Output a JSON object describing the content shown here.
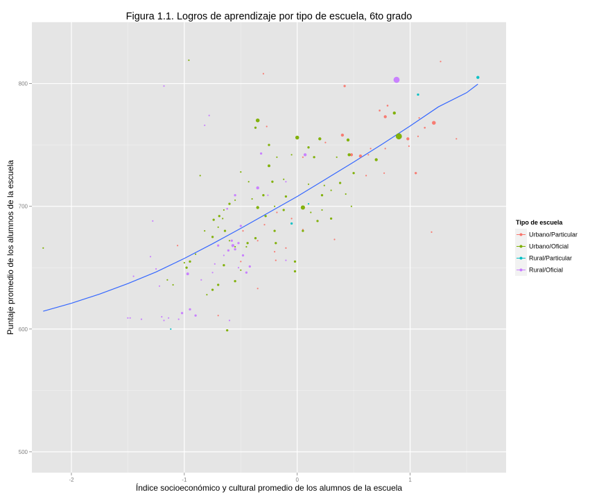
{
  "chart_data": {
    "type": "scatter",
    "title": "Figura 1.1. Logros de aprendizaje por tipo de escuela, 6to grado",
    "xlabel": "Índice socioeconómico y cultural promedio de los alumnos de la escuela",
    "ylabel": "Puntaje promedio de los alumnos de la escuela",
    "xlim": [
      -2.35,
      1.85
    ],
    "ylim": [
      483,
      850
    ],
    "x_ticks": [
      -2,
      -1,
      0,
      1
    ],
    "x_tick_labels": [
      "-2",
      "-1",
      "0",
      "1"
    ],
    "y_ticks": [
      500,
      600,
      700,
      800
    ],
    "y_tick_labels": [
      "500",
      "600",
      "700",
      "800"
    ],
    "grid": true,
    "legend": {
      "title": "Tipo de escuela",
      "position": "right"
    },
    "series": [
      {
        "name": "Urbano/Particular",
        "color": "#F8766D",
        "points": [
          [
            -0.3,
            808,
            1
          ],
          [
            0.42,
            798,
            1.5
          ],
          [
            1.27,
            818,
            1
          ],
          [
            0.8,
            782,
            1.2
          ],
          [
            0.73,
            778,
            1.2
          ],
          [
            0.78,
            773,
            2
          ],
          [
            1.08,
            772,
            1
          ],
          [
            1.13,
            764,
            1.2
          ],
          [
            1.21,
            768,
            2.5
          ],
          [
            1.07,
            757,
            1
          ],
          [
            0.98,
            755,
            2
          ],
          [
            1.41,
            755,
            1
          ],
          [
            0.4,
            758,
            2
          ],
          [
            0.25,
            752,
            1
          ],
          [
            0.48,
            742,
            2
          ],
          [
            0.56,
            741,
            2
          ],
          [
            0.63,
            742,
            1
          ],
          [
            0.65,
            747,
            1
          ],
          [
            0.78,
            747,
            1
          ],
          [
            0.99,
            749,
            1
          ],
          [
            1.05,
            727,
            1.5
          ],
          [
            0.77,
            727,
            1
          ],
          [
            0.61,
            725,
            1
          ],
          [
            -0.27,
            765,
            1
          ],
          [
            0.05,
            740,
            1
          ],
          [
            1.19,
            679,
            1
          ],
          [
            0.33,
            673,
            1
          ],
          [
            0.05,
            681,
            1
          ],
          [
            -0.05,
            690,
            1
          ],
          [
            -0.2,
            663,
            1
          ],
          [
            -0.48,
            680,
            1
          ],
          [
            -0.18,
            695,
            1
          ],
          [
            -0.29,
            685,
            1
          ],
          [
            -0.35,
            672,
            1
          ],
          [
            -0.5,
            655,
            1
          ],
          [
            -0.1,
            666,
            1
          ],
          [
            -1.06,
            668,
            1
          ],
          [
            -0.35,
            633,
            1
          ],
          [
            -0.7,
            611,
            1
          ],
          [
            -0.19,
            656,
            1
          ]
        ]
      },
      {
        "name": "Urbano/Oficial",
        "color": "#7CAE00",
        "points": [
          [
            -0.96,
            819,
            1
          ],
          [
            -0.35,
            770,
            2.5
          ],
          [
            -0.37,
            764,
            1.5
          ],
          [
            -0.25,
            750,
            1.5
          ],
          [
            0.0,
            756,
            2.5
          ],
          [
            0.2,
            755,
            2
          ],
          [
            0.45,
            754,
            2
          ],
          [
            0.86,
            776,
            2
          ],
          [
            0.9,
            757,
            4
          ],
          [
            0.7,
            738,
            2
          ],
          [
            0.46,
            742,
            2
          ],
          [
            0.1,
            748,
            1.5
          ],
          [
            0.35,
            740,
            1
          ],
          [
            0.15,
            740,
            1.5
          ],
          [
            -0.05,
            742,
            1
          ],
          [
            -0.25,
            733,
            1.8
          ],
          [
            -0.5,
            728,
            1
          ],
          [
            -0.86,
            725,
            1
          ],
          [
            -0.12,
            722,
            1
          ],
          [
            -0.22,
            720,
            1.5
          ],
          [
            -0.3,
            709,
            1.5
          ],
          [
            -0.43,
            720,
            1
          ],
          [
            0.1,
            718,
            1
          ],
          [
            0.24,
            717,
            1
          ],
          [
            0.22,
            709,
            1.5
          ],
          [
            0.3,
            713,
            1
          ],
          [
            0.38,
            719,
            1.5
          ],
          [
            0.43,
            710,
            1
          ],
          [
            0.5,
            727,
            1.5
          ],
          [
            0.48,
            700,
            1
          ],
          [
            0.05,
            699,
            2.8
          ],
          [
            -0.1,
            708,
            1.5
          ],
          [
            -0.12,
            697,
            1.5
          ],
          [
            -0.2,
            700,
            1
          ],
          [
            -0.28,
            692,
            1.5
          ],
          [
            -0.35,
            699,
            2
          ],
          [
            -0.4,
            706,
            1
          ],
          [
            -0.55,
            705,
            1
          ],
          [
            -0.6,
            702,
            1.5
          ],
          [
            -0.65,
            697,
            1
          ],
          [
            -0.69,
            692,
            1.5
          ],
          [
            -0.74,
            689,
            1.5
          ],
          [
            -0.75,
            675,
            1.5
          ],
          [
            -0.82,
            680,
            1
          ],
          [
            -0.7,
            683,
            1
          ],
          [
            -0.66,
            690,
            1
          ],
          [
            -0.64,
            680,
            1.5
          ],
          [
            -0.6,
            672,
            1
          ],
          [
            -0.55,
            667,
            1
          ],
          [
            -0.44,
            670,
            1.5
          ],
          [
            -0.45,
            667,
            1
          ],
          [
            -0.37,
            674,
            1.5
          ],
          [
            -0.2,
            680,
            1.5
          ],
          [
            -0.19,
            670,
            1.5
          ],
          [
            0.05,
            680,
            1.5
          ],
          [
            0.12,
            695,
            1
          ],
          [
            0.18,
            688,
            1.5
          ],
          [
            0.22,
            697,
            1
          ],
          [
            0.3,
            690,
            1.5
          ],
          [
            -0.02,
            655,
            1.5
          ],
          [
            -0.02,
            647,
            1.5
          ],
          [
            -0.5,
            648,
            1
          ],
          [
            -0.55,
            639,
            1.5
          ],
          [
            -0.65,
            652,
            1.5
          ],
          [
            -0.7,
            636,
            1.5
          ],
          [
            -0.75,
            632,
            1.5
          ],
          [
            -0.8,
            628,
            1
          ],
          [
            -0.9,
            661,
            1
          ],
          [
            -0.95,
            655,
            1.5
          ],
          [
            -0.98,
            650,
            1.5
          ],
          [
            -1.0,
            654,
            1
          ],
          [
            -1.1,
            636,
            1
          ],
          [
            -1.15,
            640,
            1
          ],
          [
            -0.62,
            599,
            1.5
          ],
          [
            -2.25,
            666,
            1
          ],
          [
            -0.18,
            740,
            1
          ]
        ]
      },
      {
        "name": "Rural/Particular",
        "color": "#00BFC4",
        "points": [
          [
            1.6,
            805,
            2
          ],
          [
            1.07,
            791,
            1.5
          ],
          [
            0.1,
            702,
            1
          ],
          [
            -0.05,
            686,
            1.5
          ],
          [
            -1.12,
            600,
            1
          ]
        ]
      },
      {
        "name": "Rural/Oficial",
        "color": "#C77CFF",
        "points": [
          [
            -1.18,
            798,
            1
          ],
          [
            -0.82,
            766,
            1
          ],
          [
            -0.78,
            774,
            1
          ],
          [
            -1.28,
            688,
            1
          ],
          [
            0.88,
            803,
            4
          ],
          [
            0.07,
            742,
            2
          ],
          [
            -0.32,
            743,
            1.5
          ],
          [
            -0.35,
            715,
            2
          ],
          [
            -0.55,
            709,
            1.5
          ],
          [
            -0.62,
            698,
            1.2
          ],
          [
            -0.5,
            684,
            1.5
          ],
          [
            -0.52,
            670,
            1.5
          ],
          [
            -0.48,
            660,
            1.5
          ],
          [
            -0.55,
            665,
            1.5
          ],
          [
            -0.57,
            668,
            2
          ],
          [
            -0.42,
            651,
            1.5
          ],
          [
            -0.45,
            646,
            1.5
          ],
          [
            -0.52,
            650,
            1
          ],
          [
            -0.58,
            672,
            1.5
          ],
          [
            -0.61,
            664,
            1.5
          ],
          [
            -0.7,
            668,
            1.5
          ],
          [
            -0.65,
            660,
            1
          ],
          [
            -0.73,
            653,
            1
          ],
          [
            -0.75,
            646,
            1
          ],
          [
            -0.85,
            640,
            1
          ],
          [
            -0.97,
            645,
            1.8
          ],
          [
            -0.95,
            616,
            1.5
          ],
          [
            -0.9,
            611,
            1.5
          ],
          [
            -1.02,
            613,
            1.5
          ],
          [
            -1.05,
            608,
            1
          ],
          [
            -1.14,
            609,
            1
          ],
          [
            -1.18,
            607,
            1
          ],
          [
            -1.2,
            610,
            1
          ],
          [
            -1.3,
            659,
            1
          ],
          [
            -1.25,
            649,
            1
          ],
          [
            -1.22,
            635,
            1
          ],
          [
            -1.45,
            643,
            1
          ],
          [
            -1.48,
            609,
            1
          ],
          [
            -1.5,
            609,
            1
          ],
          [
            -1.38,
            608,
            1
          ],
          [
            -0.6,
            607,
            1
          ],
          [
            -0.1,
            656,
            1
          ],
          [
            -0.26,
            709,
            1
          ],
          [
            -0.1,
            720,
            1
          ]
        ]
      }
    ],
    "trend": {
      "name": "loess",
      "color": "#3366FF",
      "points": [
        [
          -2.25,
          614.5
        ],
        [
          -2.0,
          621
        ],
        [
          -1.75,
          628.5
        ],
        [
          -1.5,
          637
        ],
        [
          -1.25,
          646.5
        ],
        [
          -1.0,
          657.5
        ],
        [
          -0.75,
          669.5
        ],
        [
          -0.5,
          682
        ],
        [
          -0.25,
          695
        ],
        [
          0.0,
          708
        ],
        [
          0.25,
          722
        ],
        [
          0.5,
          736
        ],
        [
          0.75,
          750.5
        ],
        [
          1.0,
          765.5
        ],
        [
          1.25,
          781
        ],
        [
          1.5,
          792.5
        ],
        [
          1.6,
          799.5
        ]
      ]
    }
  }
}
